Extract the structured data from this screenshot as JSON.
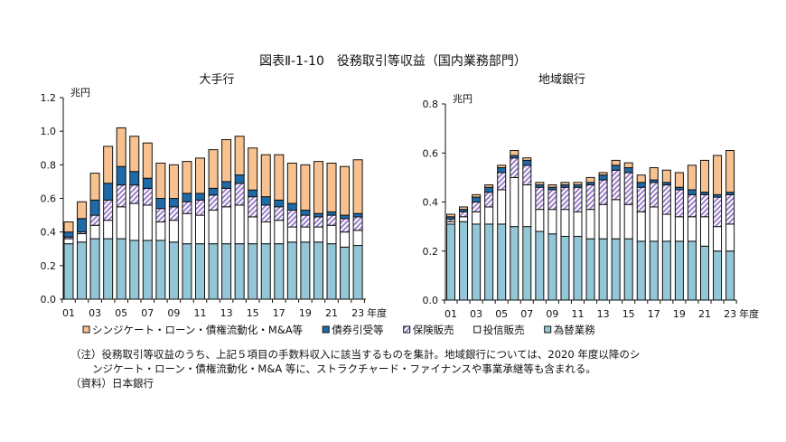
{
  "title": "図表Ⅱ-1-10　役務取引等収益（国内業務部門）",
  "notes": {
    "line1": "（注）役務取引等収益のうち、上記５項目の手数料収入に該当するものを集計。地域銀行については、2020 年度以降のシ",
    "line2": "ンジケート・ローン・債権流動化・M&A 等に、ストラクチャード・ファイナンスや事業承継等も含まれる。",
    "source": "（資料）日本銀行"
  },
  "legend": [
    {
      "label": "シンジケート・ローン・債権流動化・M&A等",
      "color": "#f7c28f"
    },
    {
      "label": "債券引受等",
      "color": "#1f6aa8"
    },
    {
      "label": "保険販売",
      "color": "#9b7fc9"
    },
    {
      "label": "投信販売",
      "color": "#ffffff"
    },
    {
      "label": "為替業務",
      "color": "#93c6d6"
    }
  ],
  "chart_data": [
    {
      "type": "bar",
      "stacked": true,
      "title": "大手行",
      "ylabel": "兆円",
      "xlabel": "年度",
      "ylim": [
        0,
        1.2
      ],
      "yticks": [
        "0.0",
        "0.2",
        "0.4",
        "0.6",
        "0.8",
        "1.0",
        "1.2"
      ],
      "categories": [
        "01",
        "02",
        "03",
        "04",
        "05",
        "06",
        "07",
        "08",
        "09",
        "10",
        "11",
        "12",
        "13",
        "14",
        "15",
        "16",
        "17",
        "18",
        "19",
        "20",
        "21",
        "22",
        "23"
      ],
      "xticklabels": [
        "01",
        "03",
        "05",
        "07",
        "09",
        "11",
        "13",
        "15",
        "17",
        "19",
        "21",
        "23"
      ],
      "series": [
        {
          "name": "為替業務",
          "values": [
            0.33,
            0.34,
            0.36,
            0.36,
            0.36,
            0.35,
            0.35,
            0.35,
            0.34,
            0.33,
            0.33,
            0.33,
            0.33,
            0.33,
            0.33,
            0.33,
            0.33,
            0.34,
            0.34,
            0.34,
            0.33,
            0.31,
            0.32
          ]
        },
        {
          "name": "投信販売",
          "values": [
            0.03,
            0.05,
            0.08,
            0.11,
            0.19,
            0.22,
            0.21,
            0.11,
            0.13,
            0.18,
            0.17,
            0.2,
            0.22,
            0.23,
            0.16,
            0.13,
            0.14,
            0.09,
            0.09,
            0.09,
            0.11,
            0.09,
            0.09
          ]
        },
        {
          "name": "保険販売",
          "values": [
            0.01,
            0.01,
            0.06,
            0.12,
            0.13,
            0.11,
            0.1,
            0.08,
            0.08,
            0.07,
            0.09,
            0.09,
            0.11,
            0.13,
            0.12,
            0.1,
            0.08,
            0.1,
            0.07,
            0.06,
            0.06,
            0.08,
            0.08
          ]
        },
        {
          "name": "債券引受等",
          "values": [
            0.03,
            0.08,
            0.09,
            0.1,
            0.11,
            0.08,
            0.06,
            0.06,
            0.05,
            0.05,
            0.04,
            0.04,
            0.04,
            0.05,
            0.04,
            0.05,
            0.04,
            0.04,
            0.03,
            0.02,
            0.02,
            0.02,
            0.02
          ]
        },
        {
          "name": "シンジケート・ローン・債権流動化・M&A等",
          "values": [
            0.06,
            0.1,
            0.16,
            0.22,
            0.23,
            0.21,
            0.21,
            0.21,
            0.2,
            0.19,
            0.21,
            0.23,
            0.25,
            0.23,
            0.25,
            0.25,
            0.27,
            0.24,
            0.27,
            0.31,
            0.29,
            0.29,
            0.32
          ]
        }
      ]
    },
    {
      "type": "bar",
      "stacked": true,
      "title": "地域銀行",
      "ylabel": "兆円",
      "xlabel": "年度",
      "ylim": [
        0,
        0.8
      ],
      "yticks": [
        "0.0",
        "0.2",
        "0.4",
        "0.6",
        "0.8"
      ],
      "categories": [
        "01",
        "02",
        "03",
        "04",
        "05",
        "06",
        "07",
        "08",
        "09",
        "10",
        "11",
        "12",
        "13",
        "14",
        "15",
        "16",
        "17",
        "18",
        "19",
        "20",
        "21",
        "22",
        "23"
      ],
      "xticklabels": [
        "01",
        "03",
        "05",
        "07",
        "09",
        "11",
        "13",
        "15",
        "17",
        "19",
        "21",
        "23"
      ],
      "series": [
        {
          "name": "為替業務",
          "values": [
            0.31,
            0.32,
            0.31,
            0.31,
            0.31,
            0.3,
            0.3,
            0.28,
            0.27,
            0.26,
            0.26,
            0.25,
            0.25,
            0.25,
            0.25,
            0.24,
            0.24,
            0.24,
            0.24,
            0.24,
            0.22,
            0.2,
            0.2
          ]
        },
        {
          "name": "投信販売",
          "values": [
            0.01,
            0.02,
            0.05,
            0.07,
            0.14,
            0.2,
            0.17,
            0.09,
            0.1,
            0.11,
            0.1,
            0.12,
            0.14,
            0.16,
            0.14,
            0.12,
            0.14,
            0.11,
            0.1,
            0.1,
            0.12,
            0.1,
            0.11
          ]
        },
        {
          "name": "保険販売",
          "values": [
            0.01,
            0.02,
            0.04,
            0.06,
            0.07,
            0.08,
            0.08,
            0.09,
            0.08,
            0.09,
            0.1,
            0.1,
            0.1,
            0.12,
            0.13,
            0.1,
            0.1,
            0.12,
            0.11,
            0.09,
            0.09,
            0.12,
            0.12
          ]
        },
        {
          "name": "債券引受等",
          "values": [
            0.01,
            0.01,
            0.02,
            0.02,
            0.02,
            0.01,
            0.02,
            0.01,
            0.01,
            0.01,
            0.01,
            0.01,
            0.02,
            0.02,
            0.02,
            0.02,
            0.01,
            0.01,
            0.01,
            0.02,
            0.01,
            0.01,
            0.01
          ]
        },
        {
          "name": "シンジケート・ローン・債権流動化・M&A等",
          "values": [
            0.01,
            0.01,
            0.01,
            0.01,
            0.01,
            0.02,
            0.01,
            0.01,
            0.01,
            0.01,
            0.01,
            0.02,
            0.01,
            0.02,
            0.02,
            0.03,
            0.05,
            0.05,
            0.06,
            0.1,
            0.13,
            0.16,
            0.17
          ]
        }
      ]
    }
  ]
}
